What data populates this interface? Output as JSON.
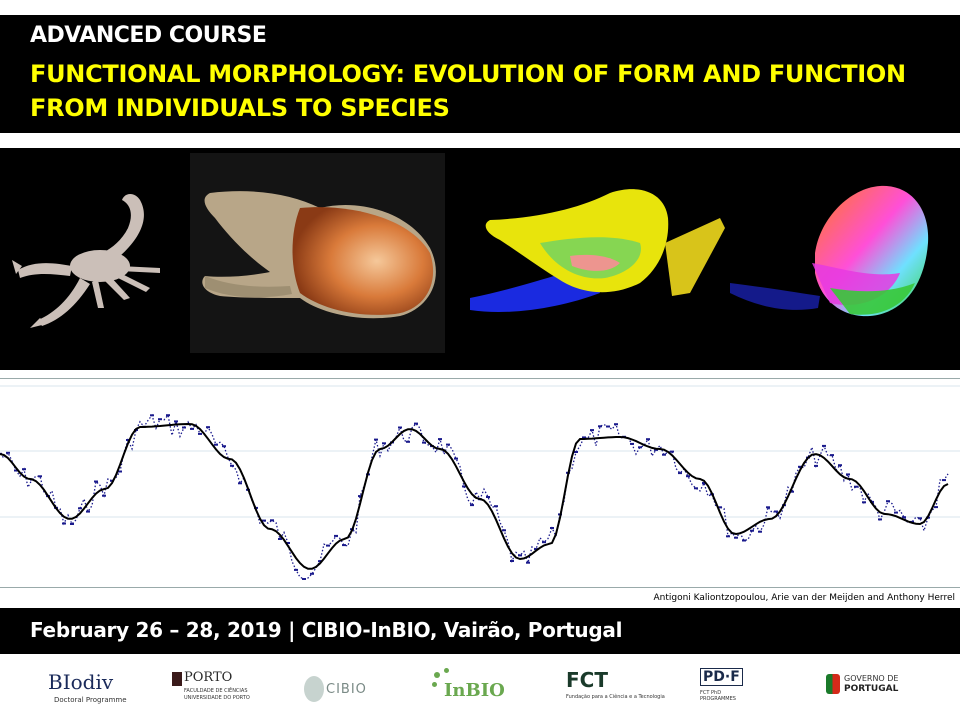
{
  "header": {
    "course": "ADVANCED COURSE",
    "title_line1": "FUNCTIONAL MORPHOLOGY: EVOLUTION OF FORM AND FUNCTION",
    "title_line2": "FROM INDIVIDUALS TO SPECIES"
  },
  "credit": "Antigoni Kaliontzopoulou, Arie van der Meijden and Anthony Herrel",
  "footer": {
    "dates": "February 26 – 28, 2019 | CIBIO-InBIO, Vairão, Portugal"
  },
  "logos": {
    "biodiv": {
      "name": "BIodiv",
      "sub": "Doctoral Programme"
    },
    "porto": {
      "name": "PORTO",
      "sub1": "FACULDADE DE CIÊNCIAS",
      "sub2": "UNIVERSIDADE DO PORTO"
    },
    "cibio": {
      "name": "CIBIO"
    },
    "inbio": {
      "name": "InBIO"
    },
    "fct": {
      "name": "FCT",
      "sub": "Fundação para a Ciência e a Tecnologia"
    },
    "pdf": {
      "name": "PD·F",
      "sub1": "FCT PhD",
      "sub2": "PROGRAMMES"
    },
    "gov": {
      "name1": "GOVERNO DE",
      "name2": "PORTUGAL"
    }
  },
  "colors": {
    "title_yellow": "#ffff00",
    "band_black": "#000000",
    "trace_blue": "#1a1a8c",
    "smooth_line": "#000000"
  }
}
